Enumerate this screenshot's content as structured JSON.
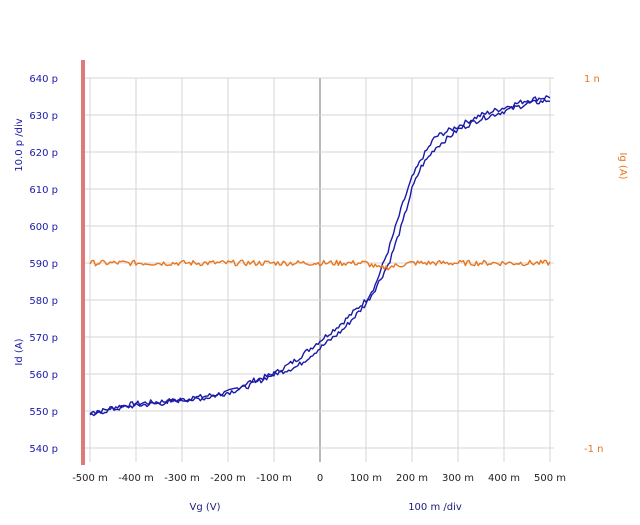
{
  "chart_data": {
    "type": "line",
    "x_axis": {
      "label": "Vg (V)",
      "scale": "100 m /div",
      "range": [
        -0.5,
        0.5
      ],
      "ticks": [
        "-500 m",
        "-400 m",
        "-300 m",
        "-200 m",
        "-100 m",
        "0",
        "100 m",
        "200 m",
        "300 m",
        "400 m",
        "500 m"
      ],
      "tick_values": [
        -0.5,
        -0.4,
        -0.3,
        -0.2,
        -0.1,
        0,
        0.1,
        0.2,
        0.3,
        0.4,
        0.5
      ]
    },
    "y_axis_left": {
      "label": "Id (A)",
      "scale": "10.0 p /div",
      "range": [
        540,
        640
      ],
      "unit_note": "pA",
      "ticks": [
        "640 p",
        "630 p",
        "620 p",
        "610 p",
        "600 p",
        "590 p",
        "580 p",
        "570 p",
        "560 p",
        "550 p",
        "540 p"
      ],
      "tick_values": [
        640,
        630,
        620,
        610,
        600,
        590,
        580,
        570,
        560,
        550,
        540
      ]
    },
    "y_axis_right": {
      "label": "Ig (A)",
      "range": [
        -1,
        1
      ],
      "unit_note": "nA",
      "ticks": [
        "1 n",
        "-1 n"
      ],
      "tick_values": [
        1,
        -1
      ]
    },
    "grid": true,
    "series": [
      {
        "axis": "left",
        "color": "#1a1aa6",
        "x": [
          -0.5,
          -0.45,
          -0.4,
          -0.35,
          -0.3,
          -0.25,
          -0.2,
          -0.15,
          -0.1,
          -0.05,
          0,
          0.05,
          0.1,
          0.12,
          0.15,
          0.18,
          0.2,
          0.22,
          0.25,
          0.3,
          0.35,
          0.4,
          0.45,
          0.5
        ],
        "y": [
          549,
          551,
          552,
          552.5,
          553,
          554,
          555,
          558,
          560,
          564,
          569,
          574,
          580,
          584,
          594,
          606,
          613,
          618,
          624,
          627,
          630,
          632,
          634,
          635
        ]
      },
      {
        "axis": "left",
        "color": "#1a1aa6",
        "x": [
          -0.5,
          -0.45,
          -0.4,
          -0.35,
          -0.3,
          -0.25,
          -0.2,
          -0.15,
          -0.1,
          -0.05,
          0,
          0.05,
          0.1,
          0.12,
          0.15,
          0.18,
          0.2,
          0.22,
          0.25,
          0.3,
          0.35,
          0.4,
          0.45,
          0.5
        ],
        "y": [
          549,
          550.5,
          551.5,
          552,
          553,
          553.5,
          555,
          557,
          560,
          562,
          567,
          572,
          579,
          583,
          590,
          601,
          610,
          616,
          621,
          626,
          629,
          631,
          633,
          634
        ]
      },
      {
        "axis": "right",
        "color": "#e8761e",
        "x": [
          -0.5,
          -0.4,
          -0.3,
          -0.2,
          -0.1,
          0,
          0.1,
          0.13,
          0.2,
          0.3,
          0.4,
          0.5
        ],
        "y": [
          0,
          0,
          0,
          0,
          0,
          0,
          0,
          -0.03,
          0,
          0,
          0,
          0
        ]
      }
    ]
  }
}
